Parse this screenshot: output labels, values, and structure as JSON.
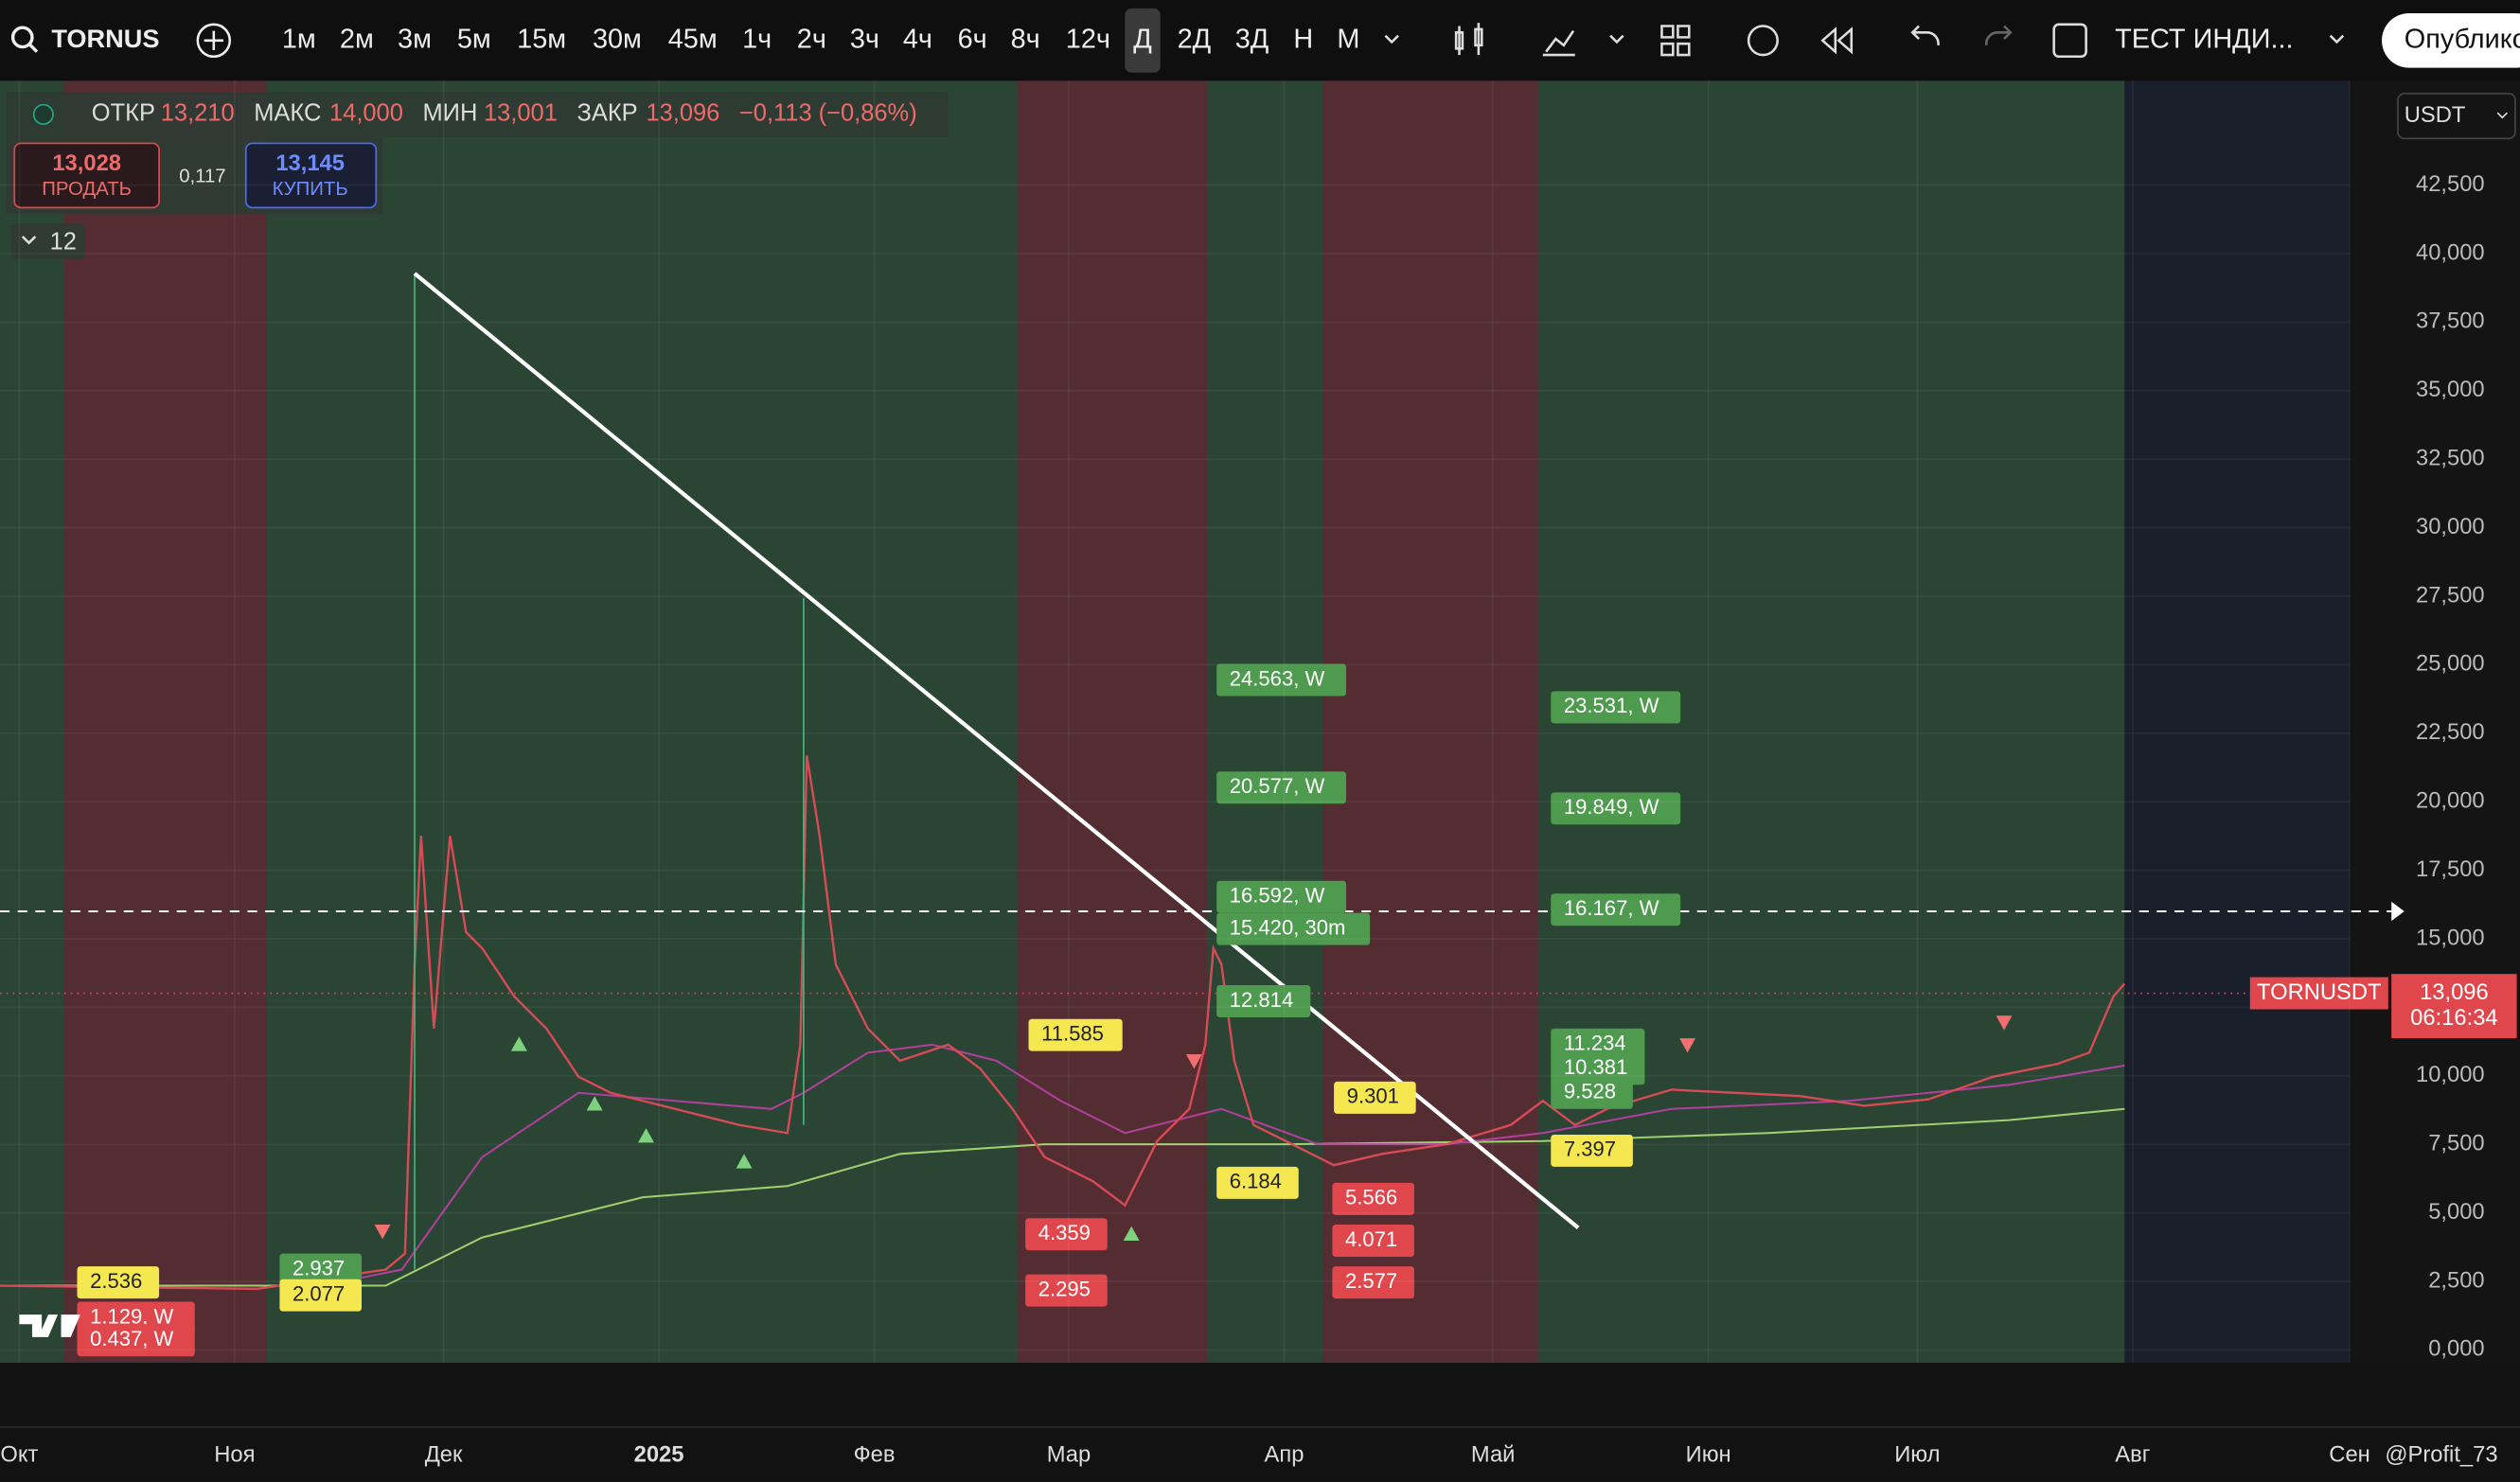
{
  "toolbar": {
    "symbol": "TORNUS",
    "intervals": [
      "1м",
      "2м",
      "3м",
      "5м",
      "15м",
      "30м",
      "45м",
      "1ч",
      "2ч",
      "3ч",
      "4ч",
      "6ч",
      "8ч",
      "12ч",
      "Д",
      "2Д",
      "3Д",
      "Н",
      "М"
    ],
    "indicator": "ТЕСТ ИНДИ...",
    "publish": "Опублико"
  },
  "legend": {
    "open_label": "ОТКР",
    "open": "13,210",
    "high_label": "МАКС",
    "high": "14,000",
    "low_label": "МИН",
    "low": "13,001",
    "close_label": "ЗАКР",
    "close": "13,096",
    "change": "−0,113 (−0,86%)"
  },
  "trade": {
    "sell_price": "13,028",
    "sell": "ПРОДАТЬ",
    "spread": "0,117",
    "buy_price": "13,145",
    "buy": "КУПИТЬ"
  },
  "indicators_count": "12",
  "currency": "USDT",
  "price_axis": [
    "42,500",
    "40,000",
    "37,500",
    "35,000",
    "32,500",
    "30,000",
    "27,500",
    "25,000",
    "22,500",
    "20,000",
    "17,500",
    "15,000",
    "12,500",
    "10,000",
    "7,500",
    "5,000",
    "2,500",
    "0,000"
  ],
  "time_axis": [
    "Окт",
    "Ноя",
    "Дек",
    "2025",
    "Фев",
    "Мар",
    "Апр",
    "Май",
    "Июн",
    "Июл",
    "Авг",
    "Сен"
  ],
  "price_tag": {
    "symbol": "TORNUSDT",
    "price": "13,096",
    "countdown": "06:16:34"
  },
  "labels": [
    {
      "text": "24.563, W",
      "color": "#4e9a4e"
    },
    {
      "text": "20.577, W",
      "color": "#4e9a4e"
    },
    {
      "text": "16.592, W",
      "color": "#4e9a4e"
    },
    {
      "text": "15.420, 30m",
      "color": "#4e9a4e"
    },
    {
      "text": "12.814",
      "color": "#4e9a4e"
    },
    {
      "text": "23.531, W",
      "color": "#4e9a4e"
    },
    {
      "text": "19.849, W",
      "color": "#4e9a4e"
    },
    {
      "text": "16.167, W",
      "color": "#4e9a4e"
    },
    {
      "text": "11.234",
      "color": "#4e9a4e"
    },
    {
      "text": "10.381",
      "color": "#4e9a4e"
    },
    {
      "text": "9.528",
      "color": "#4e9a4e"
    },
    {
      "text": "2.937",
      "color": "#4e9a4e"
    },
    {
      "text": "11.585",
      "color": "#f5e74f"
    },
    {
      "text": "9.301",
      "color": "#f5e74f"
    },
    {
      "text": "6.184",
      "color": "#f5e74f"
    },
    {
      "text": "7.397",
      "color": "#f5e74f"
    },
    {
      "text": "2.536",
      "color": "#f5e74f"
    },
    {
      "text": "2.077",
      "color": "#f5e74f"
    },
    {
      "text": "5.566",
      "color": "#e0474c"
    },
    {
      "text": "4.071",
      "color": "#e0474c"
    },
    {
      "text": "2.577",
      "color": "#e0474c"
    },
    {
      "text": "4.359",
      "color": "#e0474c"
    },
    {
      "text": "2.295",
      "color": "#e0474c"
    },
    {
      "text": "1.129, W",
      "color": "#e0474c"
    },
    {
      "text": "0.437, W",
      "color": "#e0474c"
    }
  ],
  "watermark": "@Profit_73"
}
